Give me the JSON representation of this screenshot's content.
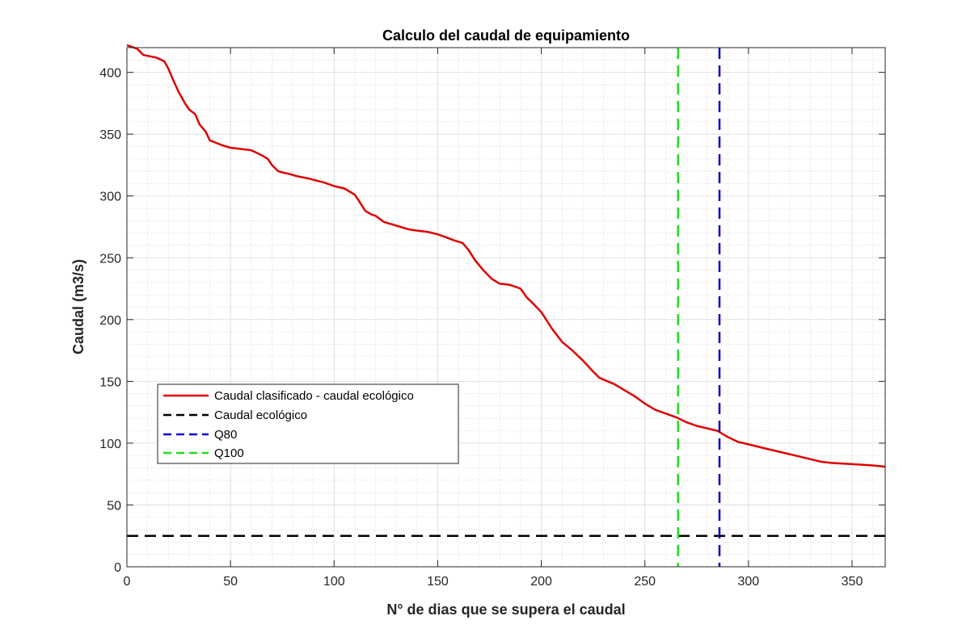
{
  "chart_data": {
    "type": "line",
    "title": "Calculo del caudal de equipamiento",
    "xlabel": "N° de dias que se supera el caudal",
    "ylabel": "Caudal (m3/s)",
    "xlim": [
      0,
      366
    ],
    "ylim": [
      0,
      420
    ],
    "xticks": [
      0,
      50,
      100,
      150,
      200,
      250,
      300,
      350
    ],
    "yticks": [
      0,
      50,
      100,
      150,
      200,
      250,
      300,
      350,
      400
    ],
    "grid": "on (major and minor)",
    "legend_position": "left",
    "series": [
      {
        "name": "Caudal clasificado - caudal ecológico",
        "color": "#e00000",
        "style": "solid",
        "x": [
          0,
          5,
          8,
          14,
          18,
          20,
          22,
          25,
          28,
          30,
          33,
          35,
          38,
          40,
          43,
          46,
          50,
          55,
          60,
          65,
          68,
          70,
          73,
          75,
          78,
          82,
          88,
          95,
          100,
          105,
          110,
          112,
          115,
          118,
          120,
          124,
          128,
          132,
          136,
          140,
          145,
          150,
          155,
          158,
          162,
          165,
          168,
          172,
          176,
          180,
          185,
          190,
          193,
          196,
          200,
          205,
          210,
          215,
          220,
          225,
          228,
          232,
          235,
          240,
          245,
          250,
          255,
          260,
          265,
          270,
          275,
          280,
          285,
          290,
          295,
          300,
          305,
          310,
          315,
          320,
          325,
          330,
          335,
          340,
          350,
          360,
          366
        ],
        "values": [
          422,
          419,
          414,
          412,
          409,
          403,
          395,
          384,
          375,
          370,
          366,
          358,
          352,
          345,
          343,
          341,
          339,
          338,
          337,
          333,
          330,
          325,
          320,
          319,
          318,
          316,
          314,
          311,
          308,
          306,
          301,
          296,
          288,
          285,
          284,
          279,
          277,
          275,
          273,
          272,
          271,
          269,
          266,
          264,
          262,
          256,
          248,
          240,
          233,
          229,
          228,
          225,
          218,
          213,
          206,
          193,
          182,
          175,
          167,
          158,
          153,
          150,
          148,
          143,
          138,
          132,
          127,
          124,
          121,
          117,
          114,
          112,
          110,
          105,
          101,
          99,
          97,
          95,
          93,
          91,
          89,
          87,
          85,
          84,
          83,
          82,
          81
        ]
      },
      {
        "name": "Caudal ecológico",
        "color": "#000000",
        "style": "dashed",
        "orientation": "horizontal",
        "value": 25
      },
      {
        "name": "Q80",
        "color": "#0000cc",
        "style": "dashed",
        "orientation": "vertical",
        "value": 286
      },
      {
        "name": "Q100",
        "color": "#22dd22",
        "style": "dashed",
        "orientation": "vertical",
        "value": 266
      }
    ]
  }
}
